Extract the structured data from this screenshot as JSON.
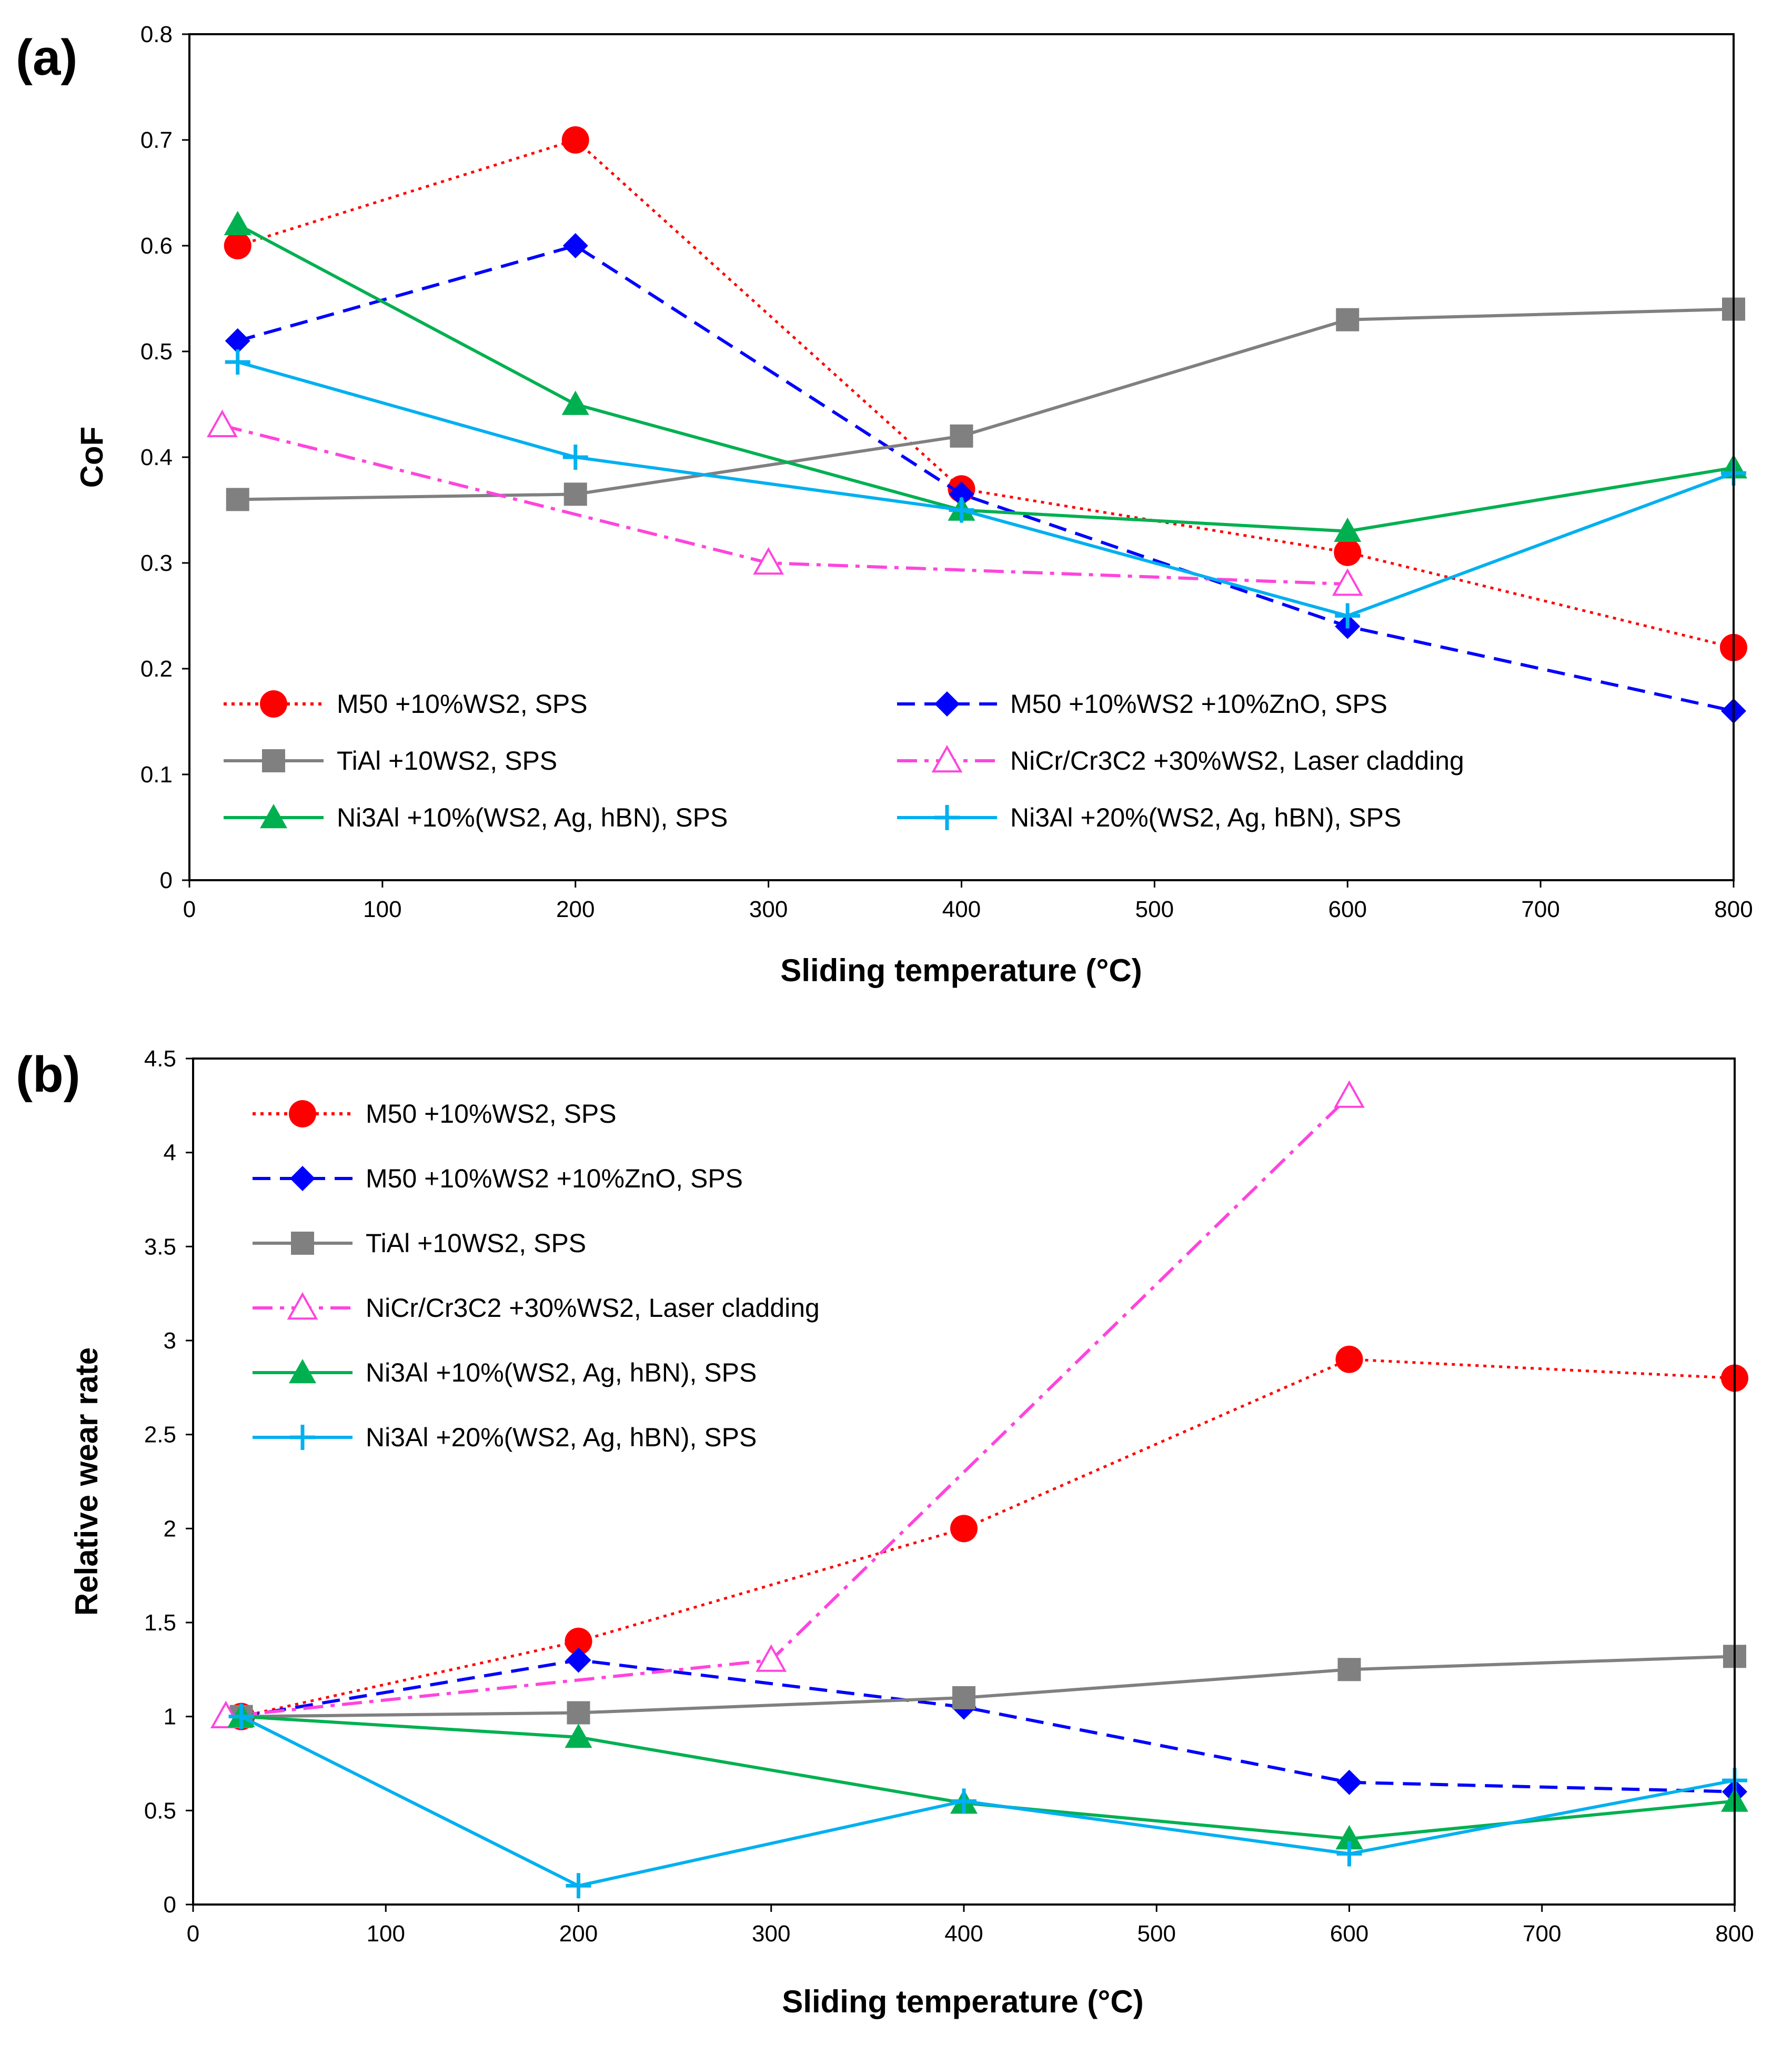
{
  "chart_data": [
    {
      "type": "line",
      "panel_label": "(a)",
      "xlabel": "Sliding temperature (°C)",
      "ylabel": "CoF",
      "xlim": [
        0,
        800
      ],
      "ylim": [
        0,
        0.8
      ],
      "xticks": [
        0,
        100,
        200,
        300,
        400,
        500,
        600,
        700,
        800
      ],
      "yticks": [
        "0",
        "0.1",
        "0.2",
        "0.3",
        "0.4",
        "0.5",
        "0.6",
        "0.7",
        "0.8"
      ],
      "yticks_values": [
        0,
        0.1,
        0.2,
        0.3,
        0.4,
        0.5,
        0.6,
        0.7,
        0.8
      ],
      "legend_placement": "bottom, two columns",
      "series": [
        {
          "name": "M50 +10%WS2, SPS",
          "color": "#ff0000",
          "dash": "dotted",
          "marker": "circle",
          "x": [
            25,
            200,
            400,
            600,
            800
          ],
          "y": [
            0.6,
            0.7,
            0.37,
            0.31,
            0.22
          ]
        },
        {
          "name": "M50 +10%WS2 +10%ZnO, SPS",
          "color": "#0000ff",
          "dash": "dashed",
          "marker": "diamond",
          "x": [
            25,
            200,
            400,
            600,
            800
          ],
          "y": [
            0.51,
            0.6,
            0.365,
            0.24,
            0.16
          ]
        },
        {
          "name": "TiAl +10WS2, SPS",
          "color": "#808080",
          "dash": "solid",
          "marker": "square",
          "x": [
            25,
            200,
            400,
            600,
            800
          ],
          "y": [
            0.36,
            0.365,
            0.42,
            0.53,
            0.54
          ]
        },
        {
          "name": "NiCr/Cr3C2 +30%WS2, Laser cladding",
          "color": "#ff44dd",
          "dash": "dashdot",
          "marker": "triangle-open",
          "x": [
            17,
            300,
            600
          ],
          "y": [
            0.43,
            0.3,
            0.28
          ]
        },
        {
          "name": "Ni3Al +10%(WS2, Ag, hBN), SPS",
          "color": "#00b050",
          "dash": "solid",
          "marker": "triangle",
          "x": [
            25,
            200,
            400,
            600,
            800
          ],
          "y": [
            0.62,
            0.45,
            0.35,
            0.33,
            0.39
          ]
        },
        {
          "name": "Ni3Al +20%(WS2, Ag, hBN), SPS",
          "color": "#00b0f0",
          "dash": "solid",
          "marker": "plus",
          "x": [
            25,
            200,
            400,
            600,
            800
          ],
          "y": [
            0.49,
            0.4,
            0.35,
            0.25,
            0.385
          ]
        }
      ]
    },
    {
      "type": "line",
      "panel_label": "(b)",
      "xlabel": "Sliding temperature (°C)",
      "ylabel": "Relative wear rate",
      "xlim": [
        0,
        800
      ],
      "ylim": [
        0,
        4.5
      ],
      "xticks": [
        0,
        100,
        200,
        300,
        400,
        500,
        600,
        700,
        800
      ],
      "yticks": [
        "0",
        "0.5",
        "1",
        "1.5",
        "2",
        "2.5",
        "3",
        "3.5",
        "4",
        "4.5"
      ],
      "yticks_values": [
        0,
        0.5,
        1,
        1.5,
        2,
        2.5,
        3,
        3.5,
        4,
        4.5
      ],
      "legend_placement": "top-left, single column",
      "series": [
        {
          "name": "M50 +10%WS2, SPS",
          "color": "#ff0000",
          "dash": "dotted",
          "marker": "circle",
          "x": [
            25,
            200,
            400,
            600,
            800
          ],
          "y": [
            1.0,
            1.4,
            2.0,
            2.9,
            2.8
          ]
        },
        {
          "name": "M50 +10%WS2 +10%ZnO, SPS",
          "color": "#0000ff",
          "dash": "dashed",
          "marker": "diamond",
          "x": [
            25,
            200,
            400,
            600,
            800
          ],
          "y": [
            1.0,
            1.3,
            1.05,
            0.65,
            0.6
          ]
        },
        {
          "name": "TiAl +10WS2, SPS",
          "color": "#808080",
          "dash": "solid",
          "marker": "square",
          "x": [
            25,
            200,
            400,
            600,
            800
          ],
          "y": [
            1.0,
            1.02,
            1.1,
            1.25,
            1.32
          ]
        },
        {
          "name": "NiCr/Cr3C2 +30%WS2, Laser cladding",
          "color": "#ff44dd",
          "dash": "dashdot",
          "marker": "triangle-open",
          "x": [
            17,
            300,
            600
          ],
          "y": [
            1.0,
            1.3,
            4.3
          ]
        },
        {
          "name": "Ni3Al +10%(WS2, Ag, hBN), SPS",
          "color": "#00b050",
          "dash": "solid",
          "marker": "triangle",
          "x": [
            25,
            200,
            400,
            600,
            800
          ],
          "y": [
            1.0,
            0.89,
            0.54,
            0.35,
            0.55
          ]
        },
        {
          "name": "Ni3Al +20%(WS2, Ag, hBN), SPS",
          "color": "#00b0f0",
          "dash": "solid",
          "marker": "plus",
          "x": [
            25,
            200,
            400,
            600,
            800
          ],
          "y": [
            1.0,
            0.1,
            0.55,
            0.27,
            0.66
          ]
        }
      ]
    }
  ]
}
